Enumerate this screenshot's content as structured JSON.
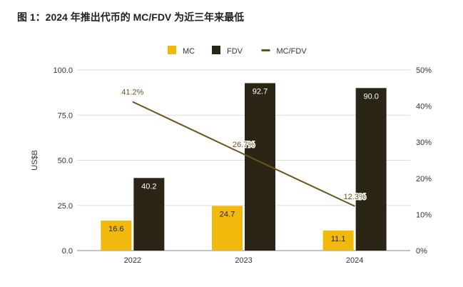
{
  "chart_data": {
    "type": "bar",
    "title": "图 1：2024 年推出代币的 MC/FDV 为近三年来最低",
    "categories": [
      "2022",
      "2023",
      "2024"
    ],
    "series": [
      {
        "name": "MC",
        "type": "bar",
        "axis": "left",
        "color": "#F0B90B",
        "values": [
          16.6,
          24.7,
          11.1
        ],
        "labels": [
          "16.6",
          "24.7",
          "11.1"
        ]
      },
      {
        "name": "FDV",
        "type": "bar",
        "axis": "left",
        "color": "#2B2516",
        "values": [
          40.2,
          92.7,
          90.0
        ],
        "labels": [
          "40.2",
          "92.7",
          "90.0"
        ]
      },
      {
        "name": "MC/FDV",
        "type": "line",
        "axis": "right",
        "color": "#6B5418",
        "values": [
          41.2,
          26.7,
          12.3
        ],
        "labels": [
          "41.2%",
          "26.7%",
          "12.3%"
        ]
      }
    ],
    "ylabel": "US$B",
    "ylim": [
      0,
      100
    ],
    "yticks": [
      "0.0",
      "25.0",
      "50.0",
      "75.0",
      "100.0"
    ],
    "y2lim": [
      0,
      50
    ],
    "y2ticks": [
      "0%",
      "10%",
      "20%",
      "30%",
      "40%",
      "50%"
    ],
    "legend": "top",
    "grid": true
  }
}
